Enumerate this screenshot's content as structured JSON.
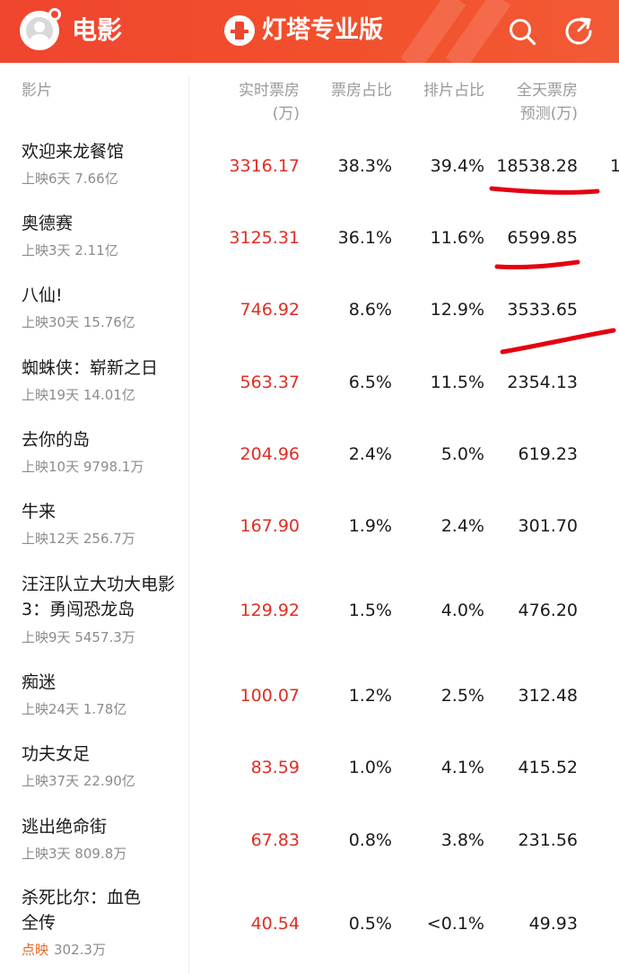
{
  "header": {
    "title": "电影",
    "brand": "灯塔专业版",
    "colors": {
      "accent": "#f0452e",
      "box_office_red": "#e02e24"
    }
  },
  "columns": {
    "film": "影片",
    "realtime_l1": "实时票房",
    "realtime_l2": "(万)",
    "box_share": "票房占比",
    "sched_share": "排片占比",
    "pred_l1": "全天票房",
    "pred_l2": "预测(万)"
  },
  "edge_fragment": "1",
  "movies": [
    {
      "name": "欢迎来龙餐馆",
      "tag": "",
      "info": "上映6天 7.66亿",
      "box": "3316.17",
      "share": "38.3%",
      "sched": "39.4%",
      "pred": "18538.28"
    },
    {
      "name": "奥德赛",
      "tag": "",
      "info": "上映3天 2.11亿",
      "box": "3125.31",
      "share": "36.1%",
      "sched": "11.6%",
      "pred": "6599.85"
    },
    {
      "name": "八仙!",
      "tag": "",
      "info": "上映30天 15.76亿",
      "box": "746.92",
      "share": "8.6%",
      "sched": "12.9%",
      "pred": "3533.65"
    },
    {
      "name": "蜘蛛侠：崭新之日",
      "tag": "",
      "info": "上映19天 14.01亿",
      "box": "563.37",
      "share": "6.5%",
      "sched": "11.5%",
      "pred": "2354.13"
    },
    {
      "name": "去你的岛",
      "tag": "",
      "info": "上映10天 9798.1万",
      "box": "204.96",
      "share": "2.4%",
      "sched": "5.0%",
      "pred": "619.23"
    },
    {
      "name": "牛来",
      "tag": "",
      "info": "上映12天 256.7万",
      "box": "167.90",
      "share": "1.9%",
      "sched": "2.4%",
      "pred": "301.70"
    },
    {
      "name": "汪汪队立大功大电影3：勇闯恐龙岛",
      "tag": "",
      "info": "上映9天 5457.3万",
      "box": "129.92",
      "share": "1.5%",
      "sched": "4.0%",
      "pred": "476.20"
    },
    {
      "name": "痴迷",
      "tag": "",
      "info": "上映24天 1.78亿",
      "box": "100.07",
      "share": "1.2%",
      "sched": "2.5%",
      "pred": "312.48"
    },
    {
      "name": "功夫女足",
      "tag": "",
      "info": "上映37天 22.90亿",
      "box": "83.59",
      "share": "1.0%",
      "sched": "4.1%",
      "pred": "415.52"
    },
    {
      "name": "逃出绝命街",
      "tag": "",
      "info": "上映3天 809.8万",
      "box": "67.83",
      "share": "0.8%",
      "sched": "3.8%",
      "pred": "231.56"
    },
    {
      "name": "杀死比尔：血色全传",
      "tag": "点映",
      "info": "302.3万",
      "box": "40.54",
      "share": "0.5%",
      "sched": "<0.1%",
      "pred": "49.93"
    }
  ]
}
